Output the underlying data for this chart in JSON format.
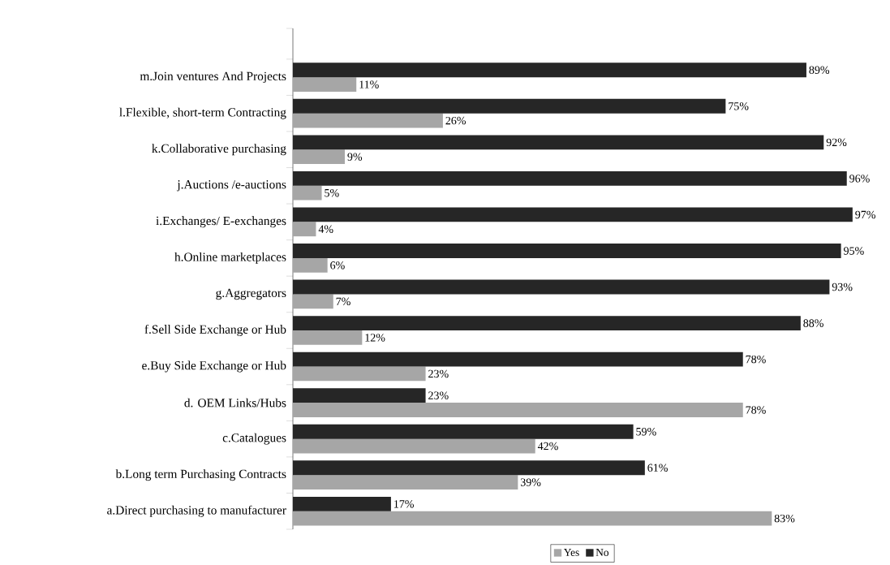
{
  "chart_data": {
    "type": "bar",
    "orientation": "horizontal",
    "legend": "bottom",
    "categories": [
      "m.Join ventures And Projects",
      "l.Flexible, short-term Contracting",
      "k.Collaborative purchasing",
      "j.Auctions /e-auctions",
      "i.Exchanges/ E-exchanges",
      "h.Online marketplaces",
      "g.Aggregators",
      "f.Sell Side Exchange or Hub",
      "e.Buy Side Exchange or Hub",
      "d. OEM Links/Hubs",
      "c.Catalogues",
      "b.Long term Purchasing Contracts",
      "a.Direct purchasing to manufacturer"
    ],
    "series": [
      {
        "name": "Yes",
        "color": "#a6a6a6",
        "values": [
          11,
          26,
          9,
          5,
          4,
          6,
          7,
          12,
          23,
          78,
          42,
          39,
          83
        ],
        "value_labels": [
          "11%",
          "26%",
          "9%",
          "5%",
          "4%",
          "6%",
          "7%",
          "12%",
          "23%",
          "78%",
          "42%",
          "39%",
          "83%"
        ]
      },
      {
        "name": "No",
        "color": "#262626",
        "values": [
          89,
          75,
          92,
          96,
          97,
          95,
          93,
          88,
          78,
          23,
          59,
          61,
          17
        ],
        "value_labels": [
          "89%",
          "75%",
          "92%",
          "96%",
          "97%",
          "95%",
          "93%",
          "88%",
          "78%",
          "23%",
          "59%",
          "61%",
          "17%"
        ]
      }
    ]
  }
}
